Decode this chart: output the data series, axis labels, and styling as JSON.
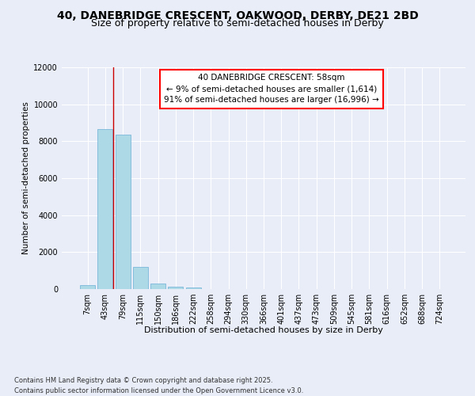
{
  "title_line1": "40, DANEBRIDGE CRESCENT, OAKWOOD, DERBY, DE21 2BD",
  "title_line2": "Size of property relative to semi-detached houses in Derby",
  "xlabel": "Distribution of semi-detached houses by size in Derby",
  "ylabel": "Number of semi-detached properties",
  "footer_line1": "Contains HM Land Registry data © Crown copyright and database right 2025.",
  "footer_line2": "Contains public sector information licensed under the Open Government Licence v3.0.",
  "categories": [
    "7sqm",
    "43sqm",
    "79sqm",
    "115sqm",
    "150sqm",
    "186sqm",
    "222sqm",
    "258sqm",
    "294sqm",
    "330sqm",
    "366sqm",
    "401sqm",
    "437sqm",
    "473sqm",
    "509sqm",
    "545sqm",
    "581sqm",
    "616sqm",
    "652sqm",
    "688sqm",
    "724sqm"
  ],
  "values": [
    200,
    8650,
    8350,
    1200,
    320,
    150,
    80,
    0,
    0,
    0,
    0,
    0,
    0,
    0,
    0,
    0,
    0,
    0,
    0,
    0,
    0
  ],
  "bar_color": "#add8e6",
  "bar_edge_color": "#6baed6",
  "annotation_title": "40 DANEBRIDGE CRESCENT: 58sqm",
  "annotation_line1": "← 9% of semi-detached houses are smaller (1,614)",
  "annotation_line2": "91% of semi-detached houses are larger (16,996) →",
  "vline_x": 1.45,
  "vline_color": "#cc0000",
  "ylim": [
    0,
    12000
  ],
  "yticks": [
    0,
    2000,
    4000,
    6000,
    8000,
    10000,
    12000
  ],
  "background_color": "#e8edf8",
  "grid_color": "#ffffff",
  "title_fontsize": 10,
  "subtitle_fontsize": 9,
  "axis_label_fontsize": 8,
  "tick_fontsize": 7,
  "annotation_fontsize": 7.5,
  "ylabel_fontsize": 7.5
}
